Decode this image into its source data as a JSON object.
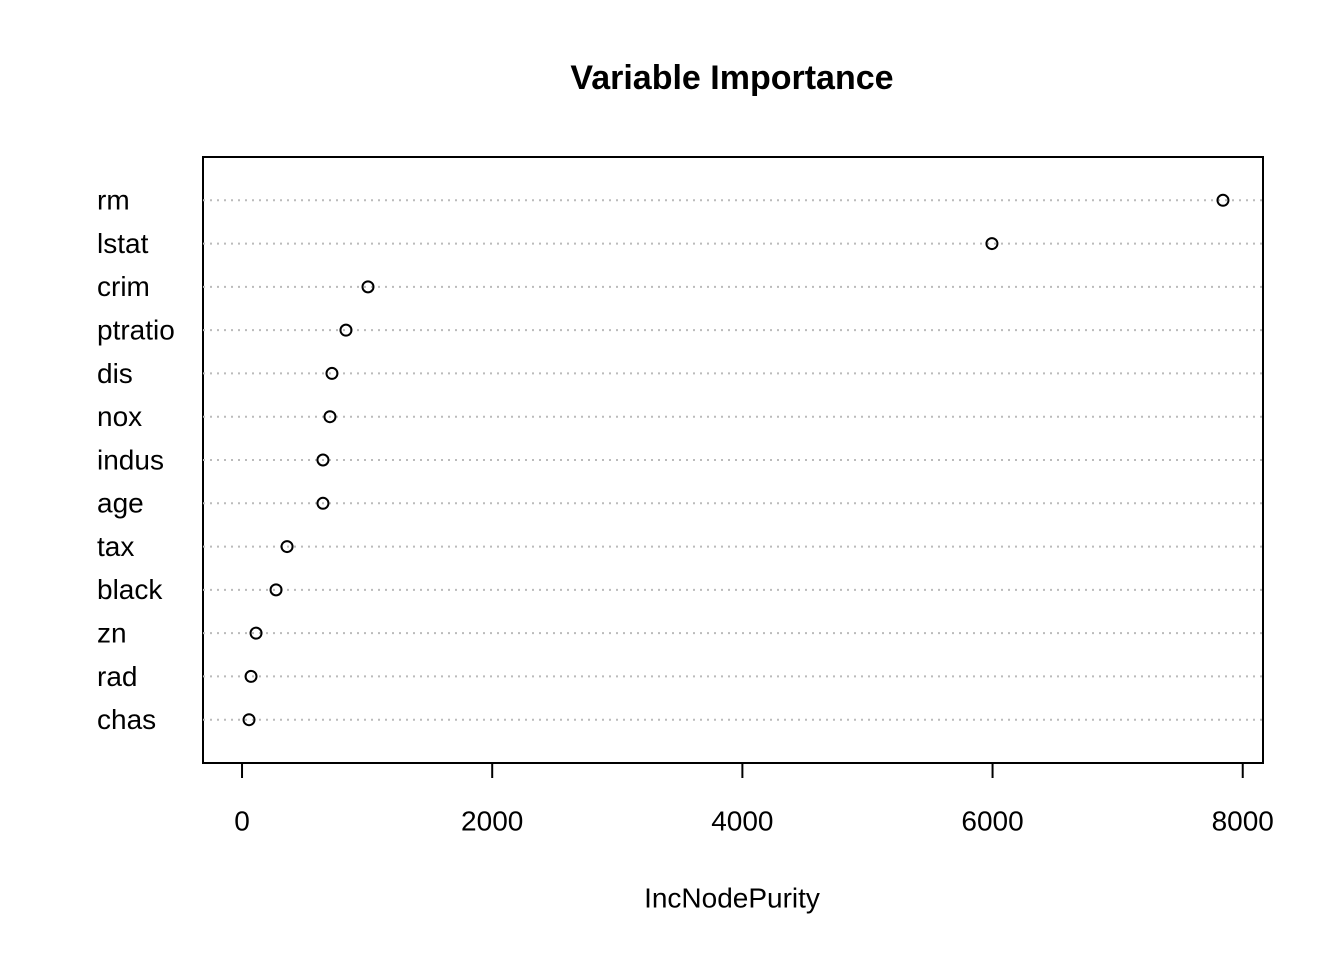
{
  "chart_data": {
    "type": "dot",
    "title": "Variable Importance",
    "x_label": "IncNodePurity",
    "categories": [
      "rm",
      "lstat",
      "crim",
      "ptratio",
      "dis",
      "nox",
      "indus",
      "age",
      "tax",
      "black",
      "zn",
      "rad",
      "chas"
    ],
    "values": [
      7842,
      5995,
      1007,
      831,
      719,
      703,
      647,
      647,
      360,
      272,
      112,
      72,
      56
    ],
    "color": "#000000",
    "xlim": [
      -312,
      8162
    ],
    "xticks": [
      0,
      2000,
      4000,
      6000,
      8000
    ],
    "grid": true
  }
}
